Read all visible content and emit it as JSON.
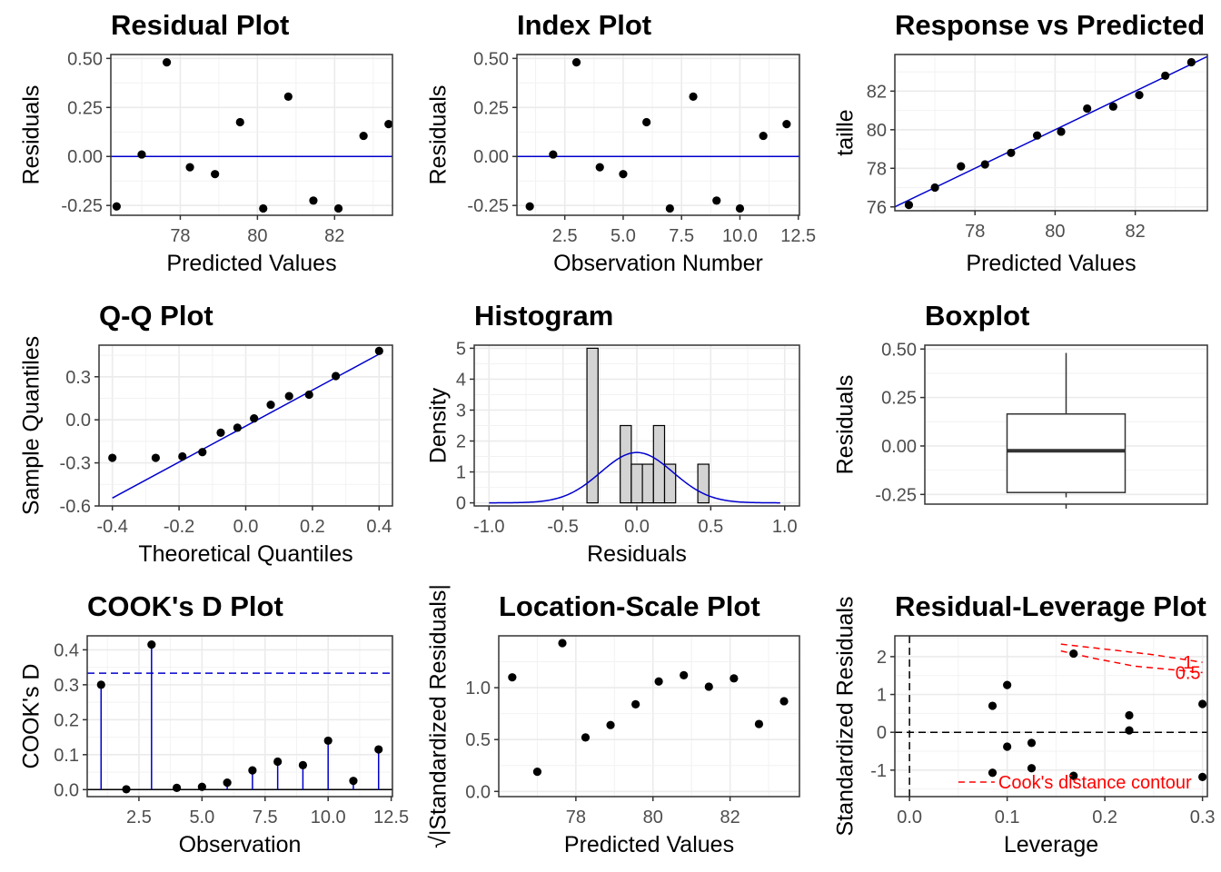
{
  "chart_data": [
    {
      "id": "residual-plot",
      "type": "scatter",
      "title": "Residual Plot",
      "xlabel": "Predicted Values",
      "ylabel": "Residuals",
      "xlim": [
        76.2,
        83.5
      ],
      "ylim": [
        -0.3,
        0.52
      ],
      "xticks": [
        78,
        80,
        82
      ],
      "xtick_labels": [
        "78",
        "80",
        "82"
      ],
      "yticks": [
        -0.25,
        0,
        0.25,
        0.5
      ],
      "ytick_labels": [
        "-0.25",
        "0.00",
        "0.25",
        "0.50"
      ],
      "grid": true,
      "points": [
        [
          76.35,
          -0.255
        ],
        [
          77.0,
          0.01
        ],
        [
          77.65,
          0.48
        ],
        [
          78.25,
          -0.055
        ],
        [
          78.9,
          -0.09
        ],
        [
          79.55,
          0.175
        ],
        [
          80.15,
          -0.265
        ],
        [
          80.8,
          0.305
        ],
        [
          81.45,
          -0.225
        ],
        [
          82.1,
          -0.265
        ],
        [
          82.75,
          0.105
        ],
        [
          83.4,
          0.165
        ]
      ],
      "reference_lines": [
        {
          "orientation": "h",
          "value": 0,
          "color": "#0000cd",
          "dash": false
        }
      ]
    },
    {
      "id": "index-plot",
      "type": "scatter",
      "title": "Index Plot",
      "xlabel": "Observation Number",
      "ylabel": "Residuals",
      "xlim": [
        0.45,
        12.55
      ],
      "ylim": [
        -0.3,
        0.52
      ],
      "xticks": [
        2.5,
        5,
        7.5,
        10,
        12.5
      ],
      "xtick_labels": [
        "2.5",
        "5.0",
        "7.5",
        "10.0",
        "12.5"
      ],
      "yticks": [
        -0.25,
        0,
        0.25,
        0.5
      ],
      "ytick_labels": [
        "-0.25",
        "0.00",
        "0.25",
        "0.50"
      ],
      "grid": true,
      "points": [
        [
          1,
          -0.255
        ],
        [
          2,
          0.01
        ],
        [
          3,
          0.48
        ],
        [
          4,
          -0.055
        ],
        [
          5,
          -0.09
        ],
        [
          6,
          0.175
        ],
        [
          7,
          -0.265
        ],
        [
          8,
          0.305
        ],
        [
          9,
          -0.225
        ],
        [
          10,
          -0.265
        ],
        [
          11,
          0.105
        ],
        [
          12,
          0.165
        ]
      ],
      "reference_lines": [
        {
          "orientation": "h",
          "value": 0,
          "color": "#0000cd",
          "dash": false
        }
      ]
    },
    {
      "id": "response-vs-predicted",
      "type": "scatter",
      "title": "Response vs Predicted",
      "xlabel": "Predicted Values",
      "ylabel": "taille",
      "xlim": [
        76.0,
        83.8
      ],
      "ylim": [
        75.8,
        83.9
      ],
      "xticks": [
        78,
        80,
        82
      ],
      "xtick_labels": [
        "78",
        "80",
        "82"
      ],
      "yticks": [
        76,
        78,
        80,
        82
      ],
      "ytick_labels": [
        "76",
        "78",
        "80",
        "82"
      ],
      "grid": true,
      "points": [
        [
          76.35,
          76.1
        ],
        [
          77.0,
          77.0
        ],
        [
          77.65,
          78.1
        ],
        [
          78.25,
          78.2
        ],
        [
          78.9,
          78.8
        ],
        [
          79.55,
          79.7
        ],
        [
          80.15,
          79.9
        ],
        [
          80.8,
          81.1
        ],
        [
          81.45,
          81.2
        ],
        [
          82.1,
          81.8
        ],
        [
          82.75,
          82.8
        ],
        [
          83.4,
          83.5
        ]
      ],
      "fit_line": [
        [
          76.0,
          76.0
        ],
        [
          83.8,
          83.8
        ]
      ]
    },
    {
      "id": "qq-plot",
      "type": "scatter",
      "title": "Q-Q Plot",
      "xlabel": "Theoretical Quantiles",
      "ylabel": "Sample Quantiles",
      "xlim": [
        -0.44,
        0.44
      ],
      "ylim": [
        -0.6,
        0.52
      ],
      "xticks": [
        -0.4,
        -0.2,
        0,
        0.2,
        0.4
      ],
      "xtick_labels": [
        "-0.4",
        "-0.2",
        "0.0",
        "0.2",
        "0.4"
      ],
      "yticks": [
        -0.6,
        -0.3,
        0,
        0.3
      ],
      "ytick_labels": [
        "-0.6",
        "-0.3",
        "0.0",
        "0.3"
      ],
      "grid": true,
      "points": [
        [
          -0.4,
          -0.265
        ],
        [
          -0.27,
          -0.265
        ],
        [
          -0.19,
          -0.255
        ],
        [
          -0.13,
          -0.225
        ],
        [
          -0.075,
          -0.09
        ],
        [
          -0.025,
          -0.055
        ],
        [
          0.025,
          0.01
        ],
        [
          0.075,
          0.105
        ],
        [
          0.13,
          0.165
        ],
        [
          0.19,
          0.175
        ],
        [
          0.27,
          0.305
        ],
        [
          0.4,
          0.48
        ]
      ],
      "fit_line": [
        [
          -0.4,
          -0.545
        ],
        [
          0.41,
          0.47
        ]
      ]
    },
    {
      "id": "histogram",
      "type": "bar",
      "title": "Histogram",
      "xlabel": "Residuals",
      "ylabel": "Density",
      "xlim": [
        -1.1,
        1.1
      ],
      "ylim": [
        -0.1,
        5.1
      ],
      "xticks": [
        -1,
        -0.5,
        0,
        0.5,
        1
      ],
      "xtick_labels": [
        "-1.0",
        "-0.5",
        "0.0",
        "0.5",
        "1.0"
      ],
      "yticks": [
        0,
        1,
        2,
        3,
        4,
        5
      ],
      "ytick_labels": [
        "0",
        "1",
        "2",
        "3",
        "4",
        "5"
      ],
      "grid": true,
      "bin_width": 0.075,
      "bars": [
        [
          -0.3,
          5
        ],
        [
          -0.075,
          2.5
        ],
        [
          0,
          1.25
        ],
        [
          0.075,
          1.25
        ],
        [
          0.15,
          2.5
        ],
        [
          0.225,
          1.25
        ],
        [
          0.45,
          1.25
        ]
      ],
      "density_curve": {
        "mean": 0,
        "sd": 0.245,
        "range": [
          -1,
          0.97
        ],
        "color": "#0000cd"
      }
    },
    {
      "id": "boxplot",
      "type": "box",
      "title": "Boxplot",
      "xlabel": "",
      "ylabel": "Residuals",
      "ylim": [
        -0.3,
        0.52
      ],
      "yticks": [
        -0.25,
        0,
        0.25,
        0.5
      ],
      "ytick_labels": [
        "-0.25",
        "0.00",
        "0.25",
        "0.50"
      ],
      "grid": true,
      "box": {
        "q1": -0.24,
        "median": -0.025,
        "q3": 0.165,
        "whisker_low": -0.265,
        "whisker_high": 0.48
      }
    },
    {
      "id": "cooks-d-plot",
      "type": "scatter",
      "title": "COOK's D Plot",
      "xlabel": "Observation",
      "ylabel": "COOK's D",
      "xlim": [
        0.45,
        12.55
      ],
      "ylim": [
        -0.02,
        0.44
      ],
      "xticks": [
        2.5,
        5,
        7.5,
        10,
        12.5
      ],
      "xtick_labels": [
        "2.5",
        "5.0",
        "7.5",
        "10.0",
        "12.5"
      ],
      "yticks": [
        0,
        0.1,
        0.2,
        0.3,
        0.4
      ],
      "ytick_labels": [
        "0.0",
        "0.1",
        "0.2",
        "0.3",
        "0.4"
      ],
      "grid": true,
      "points": [
        [
          1,
          0.3
        ],
        [
          2,
          0.001
        ],
        [
          3,
          0.415
        ],
        [
          4,
          0.005
        ],
        [
          5,
          0.008
        ],
        [
          6,
          0.02
        ],
        [
          7,
          0.055
        ],
        [
          8,
          0.08
        ],
        [
          9,
          0.07
        ],
        [
          10,
          0.14
        ],
        [
          11,
          0.025
        ],
        [
          12,
          0.115
        ]
      ],
      "stems": true,
      "reference_lines": [
        {
          "orientation": "h",
          "value": 0.333,
          "color": "#0000cd",
          "dash": true
        },
        {
          "orientation": "h",
          "value": 0,
          "color": "#000000",
          "dash": false
        }
      ]
    },
    {
      "id": "location-scale-plot",
      "type": "scatter",
      "title": "Location-Scale Plot",
      "xlabel": "Predicted Values",
      "ylabel": "√|Standardized Residuals|",
      "xlim": [
        76.0,
        83.8
      ],
      "ylim": [
        -0.05,
        1.5
      ],
      "xticks": [
        78,
        80,
        82
      ],
      "xtick_labels": [
        "78",
        "80",
        "82"
      ],
      "yticks": [
        0,
        0.5,
        1
      ],
      "ytick_labels": [
        "0.0",
        "0.5",
        "1.0"
      ],
      "grid": true,
      "points": [
        [
          76.35,
          1.1
        ],
        [
          77.0,
          0.19
        ],
        [
          77.65,
          1.43
        ],
        [
          78.25,
          0.52
        ],
        [
          78.9,
          0.64
        ],
        [
          79.55,
          0.84
        ],
        [
          80.15,
          1.06
        ],
        [
          80.8,
          1.12
        ],
        [
          81.45,
          1.01
        ],
        [
          82.1,
          1.09
        ],
        [
          82.75,
          0.65
        ],
        [
          83.4,
          0.87
        ]
      ]
    },
    {
      "id": "residual-leverage-plot",
      "type": "scatter",
      "title": "Residual-Leverage Plot",
      "xlabel": "Leverage",
      "ylabel": "Standardized Residuals",
      "xlim": [
        -0.015,
        0.305
      ],
      "ylim": [
        -1.7,
        2.55
      ],
      "xticks": [
        0,
        0.1,
        0.2,
        0.3
      ],
      "xtick_labels": [
        "0.0",
        "0.1",
        "0.2",
        "0.3"
      ],
      "yticks": [
        -1,
        0,
        1,
        2
      ],
      "ytick_labels": [
        "-1",
        "0",
        "1",
        "2"
      ],
      "grid": true,
      "points": [
        [
          0.085,
          -1.07
        ],
        [
          0.085,
          0.7
        ],
        [
          0.1,
          1.25
        ],
        [
          0.1,
          -0.38
        ],
        [
          0.125,
          -0.95
        ],
        [
          0.125,
          -0.28
        ],
        [
          0.168,
          2.08
        ],
        [
          0.168,
          -1.15
        ],
        [
          0.225,
          0.45
        ],
        [
          0.225,
          0.05
        ],
        [
          0.3,
          0.75
        ],
        [
          0.3,
          -1.18
        ]
      ],
      "reference_lines": [
        {
          "orientation": "h",
          "value": 0,
          "color": "#000000",
          "dash": true
        },
        {
          "orientation": "v",
          "value": 0,
          "color": "#000000",
          "dash": true
        }
      ],
      "contours": [
        {
          "label": "1",
          "color": "#ff0000",
          "points": [
            [
              0.155,
              2.33
            ],
            [
              0.2,
              2.2
            ],
            [
              0.25,
              2.05
            ],
            [
              0.3,
              1.85
            ]
          ]
        },
        {
          "label": "0.5",
          "color": "#ff0000",
          "points": [
            [
              0.155,
              2.15
            ],
            [
              0.19,
              1.95
            ],
            [
              0.23,
              1.75
            ],
            [
              0.3,
              1.58
            ]
          ]
        }
      ],
      "legend": {
        "label": "Cook's distance contour",
        "placement": "bottom-right",
        "color": "#ff0000"
      }
    }
  ]
}
